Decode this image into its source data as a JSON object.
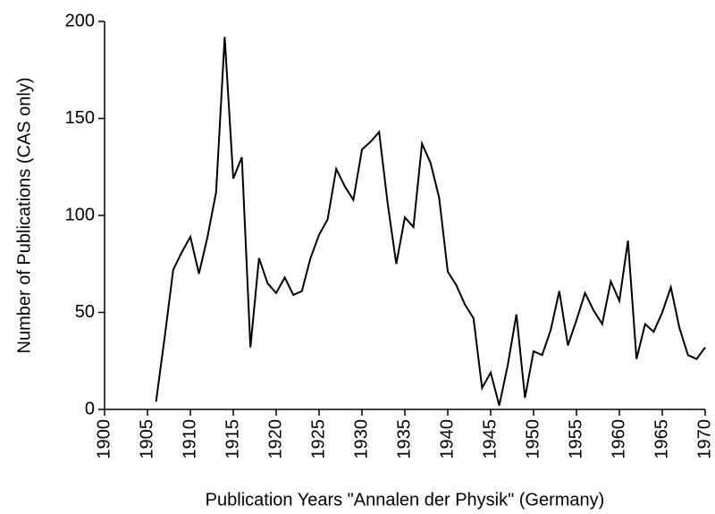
{
  "chart_data": {
    "type": "line",
    "xlabel": "Publication Years \"Annalen der Physik\" (Germany)",
    "ylabel": "Number of Publications (CAS only)",
    "x": [
      1906,
      1907,
      1908,
      1909,
      1910,
      1911,
      1912,
      1913,
      1914,
      1915,
      1916,
      1917,
      1918,
      1919,
      1920,
      1921,
      1922,
      1923,
      1924,
      1925,
      1926,
      1927,
      1928,
      1929,
      1930,
      1931,
      1932,
      1933,
      1934,
      1935,
      1936,
      1937,
      1938,
      1939,
      1940,
      1941,
      1942,
      1943,
      1944,
      1945,
      1946,
      1947,
      1948,
      1949,
      1950,
      1951,
      1952,
      1953,
      1954,
      1955,
      1956,
      1957,
      1958,
      1959,
      1960,
      1961,
      1962,
      1963,
      1964,
      1965,
      1966,
      1967,
      1968,
      1969,
      1970
    ],
    "series": [
      {
        "color": "#000000",
        "values": [
          4,
          37,
          72,
          81,
          89,
          70,
          89,
          112,
          192,
          119,
          130,
          32,
          78,
          65,
          60,
          68,
          59,
          61,
          78,
          90,
          98,
          124,
          115,
          108,
          134,
          138,
          143,
          106,
          75,
          99,
          94,
          137,
          127,
          109,
          71,
          64,
          54,
          47,
          11,
          19,
          2,
          23,
          49,
          6,
          30,
          28,
          41,
          61,
          33,
          46,
          60,
          51,
          44,
          66,
          56,
          87,
          26,
          44,
          40,
          50,
          63,
          42,
          28,
          26,
          32
        ]
      }
    ],
    "xlim": [
      1900,
      1970
    ],
    "xticks": [
      1900,
      1905,
      1910,
      1915,
      1920,
      1925,
      1930,
      1935,
      1940,
      1945,
      1950,
      1955,
      1960,
      1965,
      1970
    ],
    "ylim": [
      0,
      200
    ],
    "yticks": [
      0,
      50,
      100,
      150,
      200
    ],
    "grid": false
  }
}
